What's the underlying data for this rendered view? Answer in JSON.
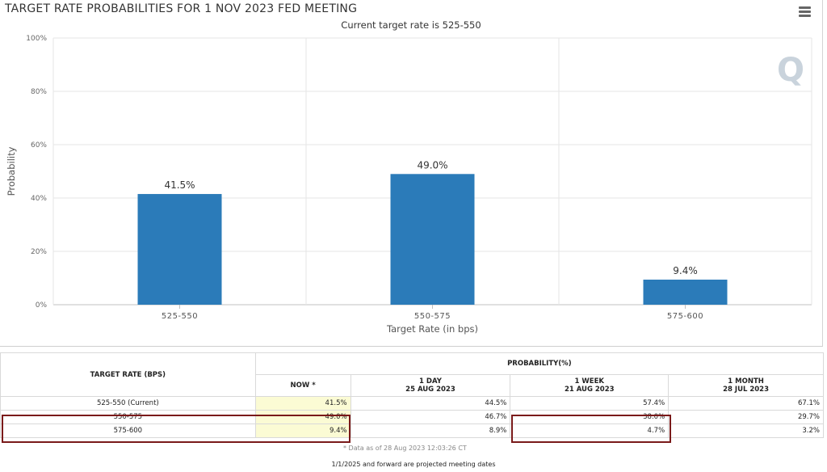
{
  "chart_data": {
    "type": "bar",
    "title": "TARGET RATE PROBABILITIES FOR 1 NOV 2023 FED MEETING",
    "subtitle": "Current target rate is 525-550",
    "categories": [
      "525-550",
      "550-575",
      "575-600"
    ],
    "values": [
      41.5,
      49.0,
      9.4
    ],
    "data_labels": [
      "41.5%",
      "49.0%",
      "9.4%"
    ],
    "xlabel": "Target Rate (in bps)",
    "ylabel": "Probability",
    "ylim": [
      0,
      100
    ],
    "yticks": [
      0,
      20,
      40,
      60,
      80,
      100
    ],
    "ytick_labels": [
      "0%",
      "20%",
      "40%",
      "60%",
      "80%",
      "100%"
    ],
    "bar_color": "#2b7bb9",
    "grid": true,
    "legend": "none"
  },
  "watermark": "Q",
  "table": {
    "rate_header": "TARGET RATE (BPS)",
    "prob_header": "PROBABILITY(%)",
    "columns": [
      {
        "label": "NOW *",
        "date": ""
      },
      {
        "label": "1 DAY",
        "date": "25 AUG 2023"
      },
      {
        "label": "1 WEEK",
        "date": "21 AUG 2023"
      },
      {
        "label": "1 MONTH",
        "date": "28 JUL 2023"
      }
    ],
    "rows": [
      {
        "rate": "525-550 (Current)",
        "values": [
          "41.5%",
          "44.5%",
          "57.4%",
          "67.1%"
        ]
      },
      {
        "rate": "550-575",
        "values": [
          "49.0%",
          "46.7%",
          "38.0%",
          "29.7%"
        ]
      },
      {
        "rate": "575-600",
        "values": [
          "9.4%",
          "8.9%",
          "4.7%",
          "3.2%"
        ]
      }
    ],
    "note": "* Data as of 28 Aug 2023 12:03:26 CT"
  },
  "footer_note": "1/1/2025 and forward are projected meeting dates",
  "colors": {
    "highlight": "#7a1a1a",
    "now_column": "#fbfbd4"
  }
}
